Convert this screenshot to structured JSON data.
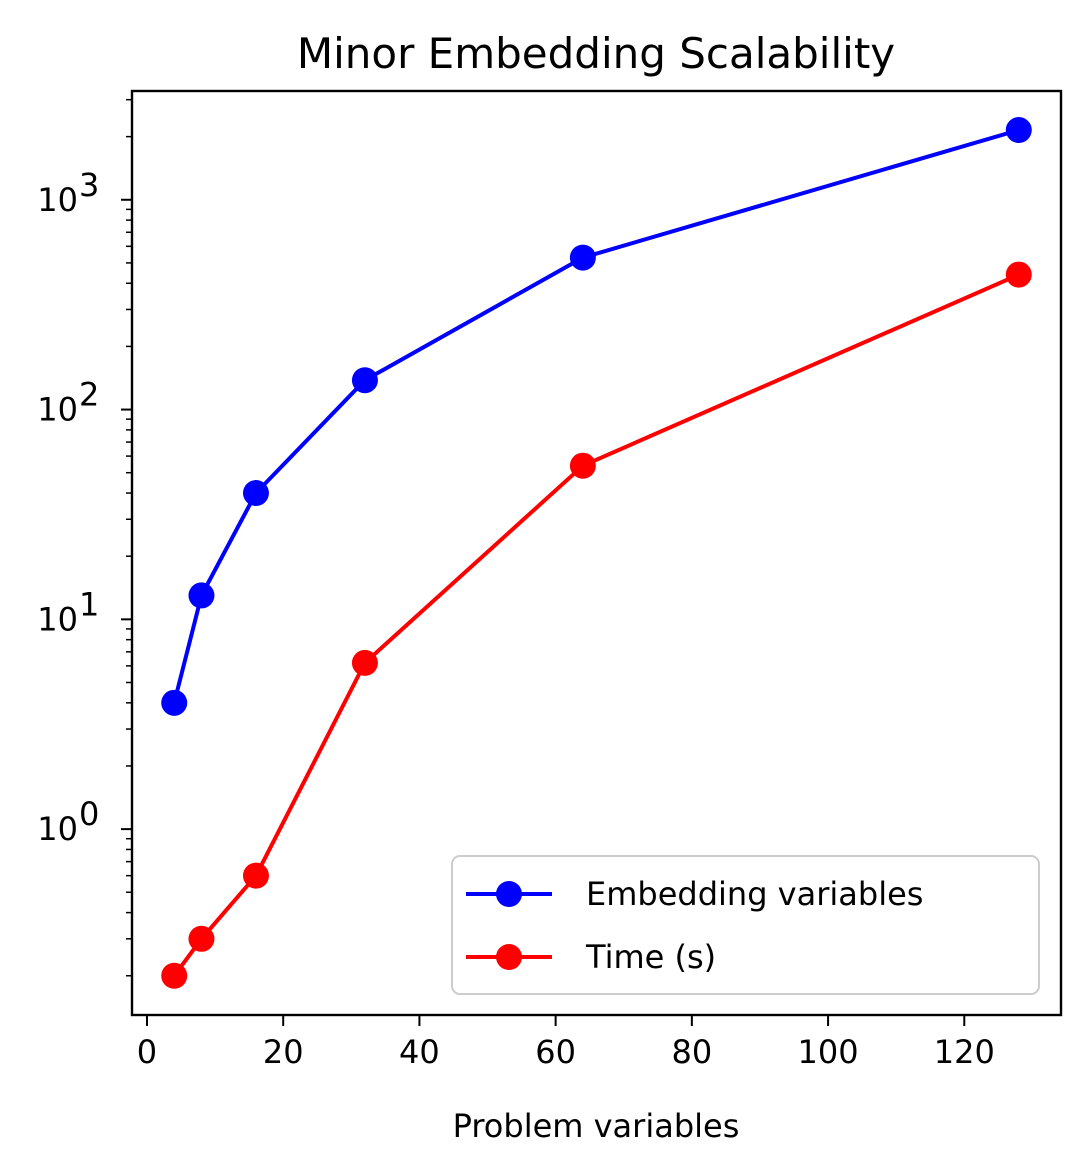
{
  "chart_data": {
    "type": "line",
    "title": "Minor Embedding Scalability",
    "xlabel": "Problem variables",
    "ylabel": "",
    "yscale": "log",
    "xlim": [
      -2.2,
      134.2
    ],
    "ylim": [
      0.13,
      3300
    ],
    "x_ticks": [
      0,
      20,
      40,
      60,
      80,
      100,
      120
    ],
    "x_tick_labels": [
      "0",
      "20",
      "40",
      "60",
      "80",
      "100",
      "120"
    ],
    "y_ticks": [
      1,
      10,
      100,
      1000
    ],
    "y_tick_labels": [
      "10",
      "10",
      "10",
      "10"
    ],
    "y_tick_exponents": [
      "0",
      "1",
      "2",
      "3"
    ],
    "grid": false,
    "legend_position": "lower-right",
    "x": [
      4,
      8,
      16,
      32,
      64,
      128
    ],
    "series": [
      {
        "name": "Embedding variables",
        "color": "#0000ff",
        "values": [
          4,
          13,
          40,
          138,
          530,
          2150
        ]
      },
      {
        "name": "Time (s)",
        "color": "#ff0000",
        "values": [
          0.2,
          0.3,
          0.6,
          6.2,
          54,
          440
        ]
      }
    ]
  }
}
